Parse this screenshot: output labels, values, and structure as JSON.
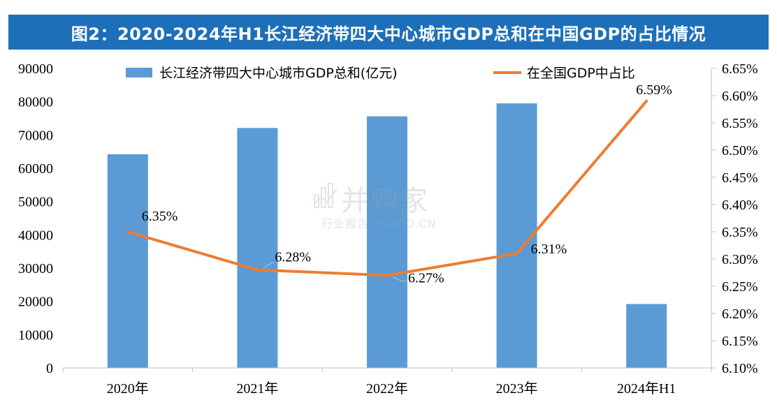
{
  "title": "图2：2020-2024年H1长江经济带四大中心城市GDP总和在中国GDP的占比情况",
  "watermark": {
    "main": "并购家",
    "sub": "行业报告 IPOIPO.CN"
  },
  "colors": {
    "title_bg": "#1e6fb9",
    "bar": "#5b9bd5",
    "line": "#ed7d31",
    "axis": "#bfbfbf"
  },
  "chart_data": {
    "type": "bar+line",
    "categories": [
      "2020年",
      "2021年",
      "2022年",
      "2023年",
      "2024年H1"
    ],
    "series": [
      {
        "name": "长江经济带四大中心城市GDP总和(亿元)",
        "type": "bar",
        "axis": "left",
        "values": [
          64200,
          72100,
          75600,
          79500,
          19200
        ]
      },
      {
        "name": "在全国GDP中占比",
        "type": "line",
        "axis": "right",
        "values": [
          6.35,
          6.28,
          6.27,
          6.31,
          6.59
        ],
        "labels": [
          "6.35%",
          "6.28%",
          "6.27%",
          "6.31%",
          "6.59%"
        ]
      }
    ],
    "y_left": {
      "min": 0,
      "max": 90000,
      "step": 10000,
      "ticks": [
        "0",
        "10000",
        "20000",
        "30000",
        "40000",
        "50000",
        "60000",
        "70000",
        "80000",
        "90000"
      ]
    },
    "y_right": {
      "min": 6.1,
      "max": 6.65,
      "step": 0.05,
      "ticks": [
        "6.10%",
        "6.15%",
        "6.20%",
        "6.25%",
        "6.30%",
        "6.35%",
        "6.40%",
        "6.45%",
        "6.50%",
        "6.55%",
        "6.60%",
        "6.65%"
      ]
    },
    "grid": false,
    "legend": "top"
  }
}
